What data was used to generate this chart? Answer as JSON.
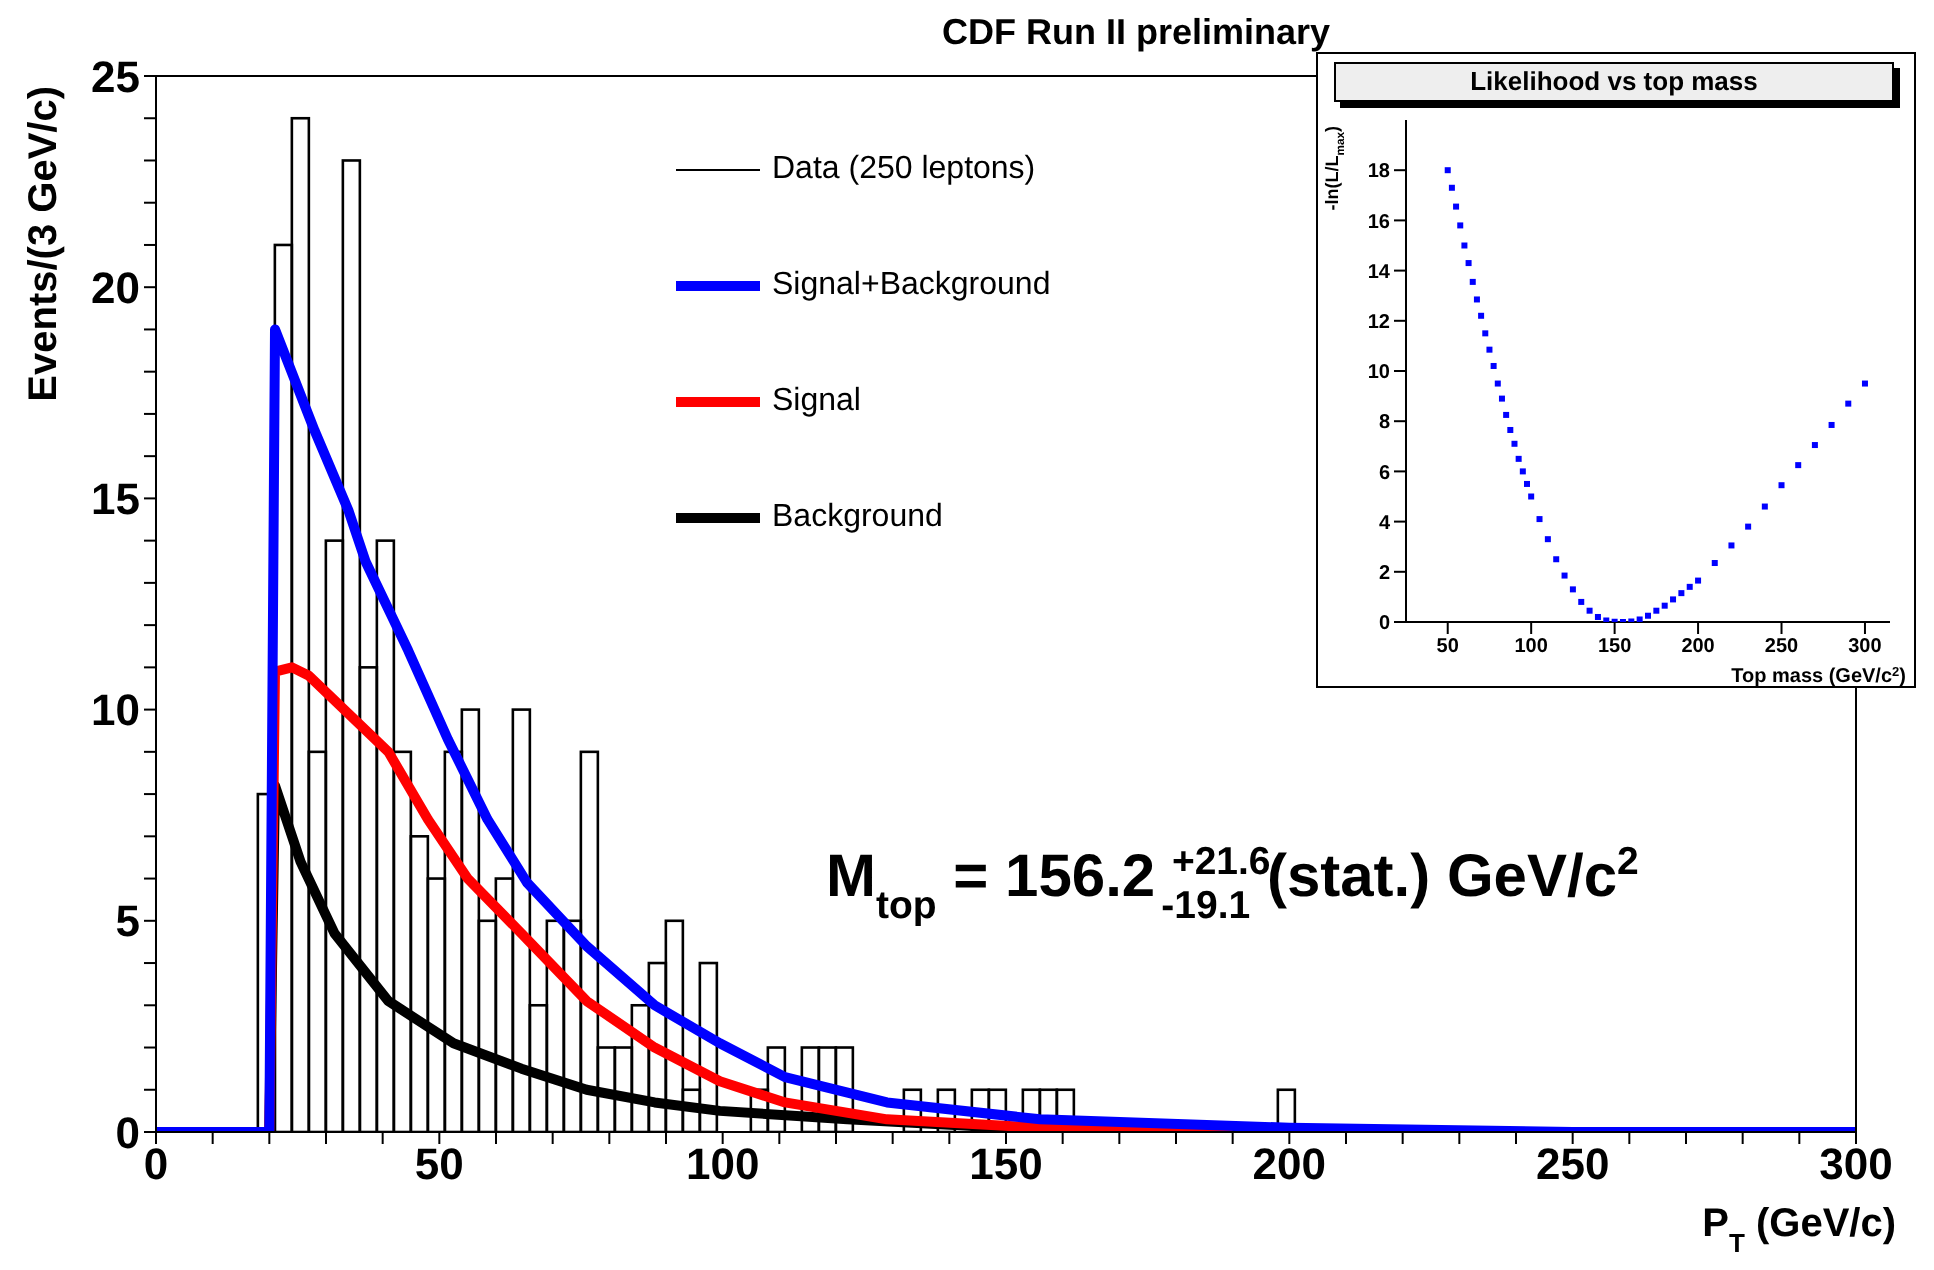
{
  "chart_data": [
    {
      "type": "histogram",
      "title": "CDF Run II preliminary",
      "xlabel": "P$_{T}$ (GeV/c)",
      "ylabel": "Events/(3 GeV/c)",
      "annotations": [
        "M$_{top}$ = 156.2 $^{+21.6}$$_{-19.1}$ (stat.) GeV/c$^{2}$"
      ],
      "xlim": [
        0,
        300
      ],
      "ylim": [
        0,
        25
      ],
      "xticks": [
        0,
        {
          "value": 10,
          "label": null
        },
        {
          "value": 20,
          "label": null
        },
        {
          "value": 30,
          "label": null
        },
        {
          "value": 40,
          "label": null
        },
        50,
        {
          "value": 60,
          "label": null
        },
        {
          "value": 70,
          "label": null
        },
        {
          "value": 80,
          "label": null
        },
        {
          "value": 90,
          "label": null
        },
        100,
        {
          "value": 110,
          "label": null
        },
        {
          "value": 120,
          "label": null
        },
        {
          "value": 130,
          "label": null
        },
        {
          "value": 140,
          "label": null
        },
        150,
        {
          "value": 160,
          "label": null
        },
        {
          "value": 170,
          "label": null
        },
        {
          "value": 180,
          "label": null
        },
        {
          "value": 190,
          "label": null
        },
        200,
        {
          "value": 210,
          "label": null
        },
        {
          "value": 220,
          "label": null
        },
        {
          "value": 230,
          "label": null
        },
        {
          "value": 240,
          "label": null
        },
        250,
        {
          "value": 260,
          "label": null
        },
        {
          "value": 270,
          "label": null
        },
        {
          "value": 280,
          "label": null
        },
        {
          "value": 290,
          "label": null
        },
        300
      ],
      "yticks": [
        0,
        {
          "value": 1,
          "label": null
        },
        {
          "value": 2,
          "label": null
        },
        {
          "value": 3,
          "label": null
        },
        {
          "value": 4,
          "label": null
        },
        5,
        {
          "value": 6,
          "label": null
        },
        {
          "value": 7,
          "label": null
        },
        {
          "value": 8,
          "label": null
        },
        {
          "value": 9,
          "label": null
        },
        10,
        {
          "value": 11,
          "label": null
        },
        {
          "value": 12,
          "label": null
        },
        {
          "value": 13,
          "label": null
        },
        {
          "value": 14,
          "label": null
        },
        15,
        {
          "value": 16,
          "label": null
        },
        {
          "value": 17,
          "label": null
        },
        {
          "value": 18,
          "label": null
        },
        {
          "value": 19,
          "label": null
        },
        20,
        {
          "value": 21,
          "label": null
        },
        {
          "value": 22,
          "label": null
        },
        {
          "value": 23,
          "label": null
        },
        {
          "value": 24,
          "label": null
        },
        25
      ],
      "legend": "top",
      "series": [
        {
          "name": "Data (250 leptons)",
          "type": "histogram",
          "color": "#000000",
          "bins": [
            18,
            21,
            24,
            27,
            30,
            33,
            36,
            39,
            42,
            45,
            48,
            51,
            54,
            57,
            60,
            63,
            66,
            69,
            72,
            75,
            78,
            81,
            84,
            87,
            90,
            93,
            96,
            99,
            102,
            105,
            108,
            111,
            114,
            117,
            120,
            123,
            126,
            129,
            132,
            135,
            138,
            141,
            144,
            147,
            150,
            153,
            156,
            159,
            162,
            165,
            168,
            171,
            174,
            177,
            180,
            183,
            186,
            189,
            192,
            195,
            198,
            201
          ],
          "values": [
            8,
            21,
            24,
            9,
            14,
            23,
            11,
            14,
            9,
            7,
            6,
            9,
            10,
            5,
            6,
            10,
            3,
            5,
            5,
            9,
            2,
            2,
            3,
            4,
            5,
            1,
            4,
            0,
            0,
            1,
            2,
            0,
            2,
            2,
            2,
            0,
            0,
            0,
            1,
            0,
            1,
            0,
            1,
            1,
            0,
            1,
            1,
            1,
            0,
            0,
            0,
            0,
            0,
            0,
            0,
            0,
            0,
            0,
            0,
            0,
            1
          ]
        },
        {
          "name": "Signal+Background",
          "type": "line",
          "color": "#0000ff",
          "x": [
            0,
            20,
            21,
            28,
            34,
            37,
            44.5,
            51.5,
            58.5,
            65.5,
            76,
            88,
            99.5,
            111,
            129,
            156,
            200,
            250,
            300
          ],
          "values": [
            0,
            0,
            19,
            16.6,
            14.7,
            13.5,
            11.4,
            9.3,
            7.4,
            5.9,
            4.4,
            3.0,
            2.1,
            1.3,
            0.7,
            0.3,
            0.1,
            0,
            0
          ]
        },
        {
          "name": "Signal",
          "type": "line",
          "color": "#ff0000",
          "x": [
            20,
            21,
            24,
            27,
            34,
            41,
            48,
            55,
            64.5,
            76,
            88,
            99.5,
            111,
            129,
            156,
            190
          ],
          "values": [
            0,
            10.9,
            11,
            10.8,
            9.9,
            9.0,
            7.4,
            6.0,
            4.7,
            3.1,
            2.0,
            1.2,
            0.7,
            0.3,
            0.1,
            0
          ]
        },
        {
          "name": "Background",
          "type": "line",
          "color": "#000000",
          "x": [
            20,
            21,
            25.5,
            31.5,
            41,
            52.5,
            64.5,
            76,
            88,
            99.5,
            122,
            150,
            200
          ],
          "values": [
            0,
            8.2,
            6.4,
            4.7,
            3.1,
            2.1,
            1.5,
            1.0,
            0.7,
            0.5,
            0.3,
            0.1,
            0
          ]
        }
      ]
    },
    {
      "type": "scatter",
      "title": "Likelihood vs top mass",
      "xlabel": "Top mass (GeV/c$^{2}$)",
      "ylabel": "-ln(L/L$_{max}$)",
      "xlim": [
        25,
        315
      ],
      "ylim": [
        0,
        20
      ],
      "xticks": [
        50,
        100,
        150,
        200,
        250,
        300
      ],
      "yticks": [
        0,
        2,
        4,
        6,
        8,
        10,
        12,
        14,
        16,
        18
      ],
      "marker": "square",
      "series": [
        {
          "color": "#0000ff",
          "x": [
            50,
            52.5,
            55,
            57.5,
            60,
            62.5,
            65,
            67.5,
            70,
            72.5,
            75,
            77.5,
            80,
            82.5,
            85,
            87.5,
            90,
            92.5,
            95,
            97.5,
            100,
            105,
            110,
            115,
            120,
            125,
            130,
            135,
            140,
            145,
            150,
            155,
            160,
            165,
            170,
            175,
            180,
            185,
            190,
            195,
            200,
            210,
            220,
            230,
            240,
            250,
            260,
            270,
            280,
            290,
            300
          ],
          "values": [
            18,
            17.3,
            16.55,
            15.8,
            15.0,
            14.3,
            13.55,
            12.85,
            12.2,
            11.5,
            10.85,
            10.2,
            9.5,
            8.9,
            8.25,
            7.65,
            7.1,
            6.5,
            6.0,
            5.5,
            5.0,
            4.1,
            3.3,
            2.5,
            1.85,
            1.3,
            0.8,
            0.45,
            0.2,
            0.06,
            0.01,
            0,
            0.02,
            0.1,
            0.25,
            0.45,
            0.65,
            0.9,
            1.15,
            1.4,
            1.65,
            2.35,
            3.05,
            3.8,
            4.6,
            5.45,
            6.25,
            7.05,
            7.85,
            8.7,
            9.5
          ]
        }
      ]
    }
  ]
}
